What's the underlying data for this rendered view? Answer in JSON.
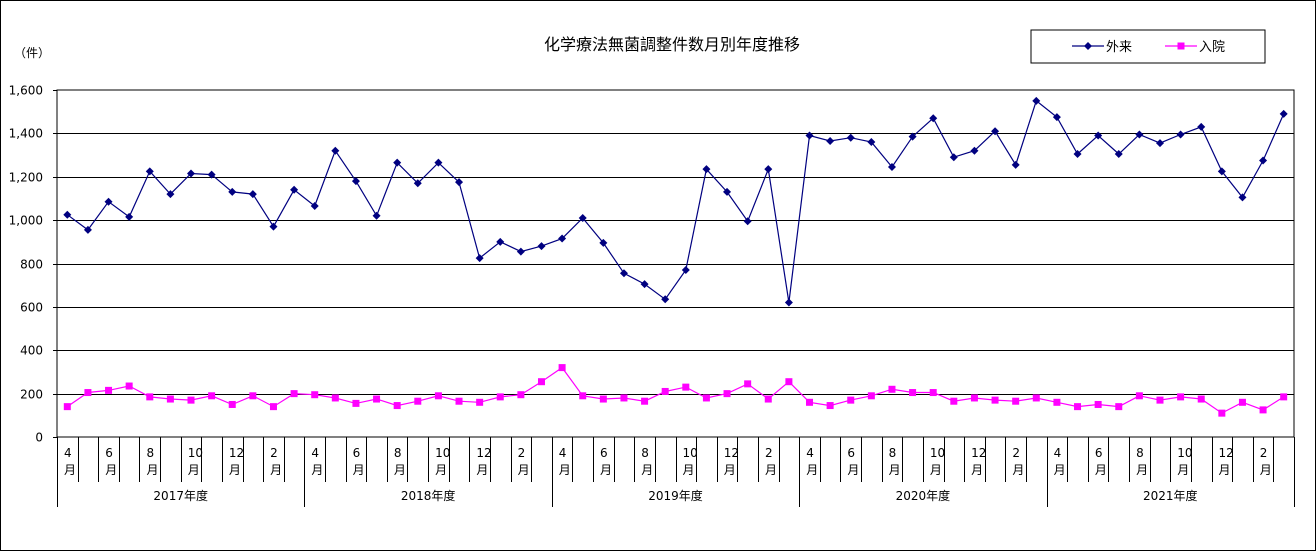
{
  "chart_data": {
    "type": "line",
    "title": "化学療法無菌調整件数月別年度推移",
    "ylabel": "（件）",
    "ylim": [
      0,
      1600
    ],
    "yticks": [
      "0",
      "200",
      "400",
      "600",
      "800",
      "1,000",
      "1,200",
      "1,400",
      "1,600"
    ],
    "ytick_values": [
      0,
      200,
      400,
      600,
      800,
      1000,
      1200,
      1400,
      1600
    ],
    "grid": true,
    "legend_position": "top-right",
    "month_labels": [
      "4",
      "",
      "6",
      "",
      "8",
      "",
      "10",
      "",
      "12",
      "",
      "2",
      ""
    ],
    "month_unit": "月",
    "years": [
      "2017年度",
      "2018年度",
      "2019年度",
      "2020年度",
      "2021年度"
    ],
    "series": [
      {
        "name": "外来",
        "color": "#000080",
        "marker": "diamond",
        "values": [
          1025,
          955,
          1085,
          1015,
          1225,
          1120,
          1215,
          1210,
          1130,
          1120,
          970,
          1140,
          1065,
          1320,
          1180,
          1020,
          1265,
          1170,
          1265,
          1175,
          825,
          900,
          855,
          880,
          915,
          1010,
          895,
          755,
          705,
          635,
          770,
          1235,
          1130,
          995,
          1235,
          620,
          1390,
          1365,
          1380,
          1360,
          1245,
          1385,
          1470,
          1290,
          1320,
          1410,
          1255,
          1550,
          1475,
          1305,
          1390,
          1305,
          1395,
          1355,
          1395,
          1430,
          1225,
          1105,
          1275,
          1490
        ]
      },
      {
        "name": "入院",
        "color": "#ff00ff",
        "marker": "square",
        "values": [
          140,
          205,
          215,
          235,
          185,
          175,
          170,
          190,
          150,
          190,
          140,
          200,
          195,
          180,
          155,
          175,
          145,
          165,
          190,
          165,
          160,
          185,
          195,
          255,
          320,
          190,
          175,
          180,
          165,
          210,
          230,
          180,
          200,
          245,
          175,
          255,
          160,
          145,
          170,
          190,
          220,
          205,
          205,
          165,
          180,
          170,
          165,
          180,
          160,
          140,
          150,
          140,
          190,
          170,
          185,
          175,
          110,
          160,
          125,
          185
        ]
      }
    ]
  }
}
